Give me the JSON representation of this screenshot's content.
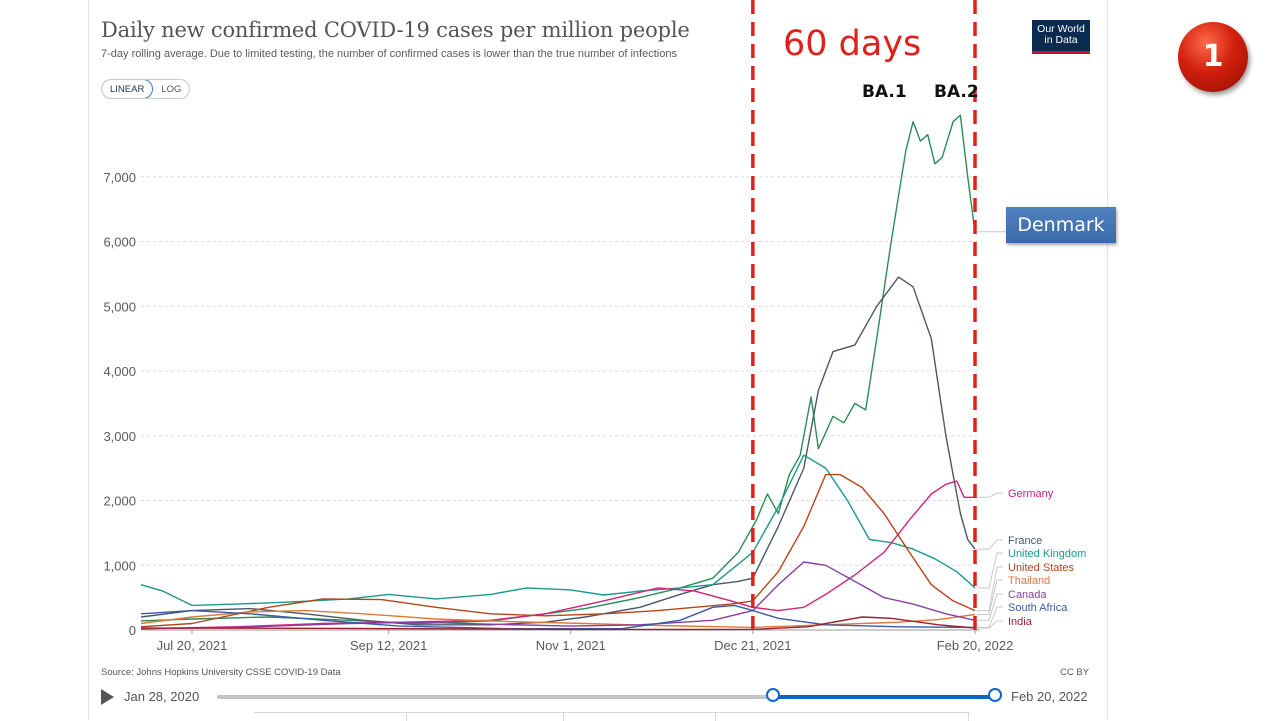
{
  "header": {
    "title": "Daily new confirmed COVID-19 cases per million people",
    "subtitle": "7-day rolling average. Due to limited testing, the number of confirmed cases is lower than the true number of infections",
    "scale_linear": "LINEAR",
    "scale_log": "LOG",
    "active_scale": "LINEAR",
    "logo_line1": "Our World",
    "logo_line2": "in Data"
  },
  "annotations": {
    "days": "60 days",
    "ba1": "BA.1",
    "ba2": "BA.2",
    "denmark": "Denmark",
    "badge": "1",
    "marker_color": "#e0201a"
  },
  "footer": {
    "source": "Source: Johns Hopkins University CSSE COVID-19 Data",
    "license": "CC BY"
  },
  "timeline": {
    "start": "Jan 28, 2020",
    "end": "Feb 20, 2022",
    "play_icon": "play-icon"
  },
  "chart_data": {
    "type": "line",
    "x_ticks": [
      "Jul 20, 2021",
      "Sep 12, 2021",
      "Nov 1, 2021",
      "Dec 21, 2021",
      "Feb 20, 2022"
    ],
    "x_range": [
      "2021-07-06",
      "2022-02-20"
    ],
    "y_ticks": [
      0,
      1000,
      2000,
      3000,
      4000,
      5000,
      6000,
      7000
    ],
    "y_tick_labels": [
      "0",
      "1,000",
      "2,000",
      "3,000",
      "4,000",
      "5,000",
      "6,000",
      "7,000"
    ],
    "ylim": [
      0,
      8000
    ],
    "grid": "horizontal dashed",
    "scale": "linear",
    "vertical_markers": [
      "2021-12-21",
      "2022-02-20"
    ],
    "series": [
      {
        "name": "Denmark",
        "color": "#2e8b57",
        "labeled": false,
        "points": [
          [
            "2021-07-06",
            140
          ],
          [
            "2021-07-20",
            170
          ],
          [
            "2021-08-10",
            200
          ],
          [
            "2021-09-01",
            150
          ],
          [
            "2021-09-20",
            100
          ],
          [
            "2021-10-10",
            140
          ],
          [
            "2021-10-25",
            250
          ],
          [
            "2021-11-05",
            330
          ],
          [
            "2021-11-20",
            500
          ],
          [
            "2021-12-01",
            650
          ],
          [
            "2021-12-10",
            800
          ],
          [
            "2021-12-17",
            1200
          ],
          [
            "2021-12-22",
            1700
          ],
          [
            "2021-12-25",
            2100
          ],
          [
            "2021-12-28",
            1800
          ],
          [
            "2021-12-31",
            2400
          ],
          [
            "2022-01-03",
            2700
          ],
          [
            "2022-01-06",
            3600
          ],
          [
            "2022-01-08",
            2800
          ],
          [
            "2022-01-12",
            3300
          ],
          [
            "2022-01-15",
            3200
          ],
          [
            "2022-01-18",
            3500
          ],
          [
            "2022-01-21",
            3400
          ],
          [
            "2022-01-24",
            4500
          ],
          [
            "2022-01-28",
            6000
          ],
          [
            "2022-02-01",
            7400
          ],
          [
            "2022-02-03",
            7850
          ],
          [
            "2022-02-05",
            7550
          ],
          [
            "2022-02-07",
            7650
          ],
          [
            "2022-02-09",
            7200
          ],
          [
            "2022-02-11",
            7300
          ],
          [
            "2022-02-14",
            7850
          ],
          [
            "2022-02-16",
            7950
          ],
          [
            "2022-02-18",
            7000
          ],
          [
            "2022-02-20",
            6150
          ]
        ]
      },
      {
        "name": "France",
        "color": "#4a5868",
        "labeled": true,
        "points": [
          [
            "2021-07-06",
            200
          ],
          [
            "2021-07-20",
            300
          ],
          [
            "2021-08-05",
            330
          ],
          [
            "2021-08-20",
            250
          ],
          [
            "2021-09-05",
            150
          ],
          [
            "2021-09-20",
            80
          ],
          [
            "2021-10-10",
            80
          ],
          [
            "2021-10-25",
            120
          ],
          [
            "2021-11-05",
            200
          ],
          [
            "2021-11-20",
            350
          ],
          [
            "2021-12-01",
            550
          ],
          [
            "2021-12-10",
            700
          ],
          [
            "2021-12-17",
            750
          ],
          [
            "2021-12-21",
            800
          ],
          [
            "2021-12-28",
            1600
          ],
          [
            "2022-01-04",
            2500
          ],
          [
            "2022-01-08",
            3700
          ],
          [
            "2022-01-12",
            4300
          ],
          [
            "2022-01-18",
            4400
          ],
          [
            "2022-01-24",
            5000
          ],
          [
            "2022-01-30",
            5450
          ],
          [
            "2022-02-03",
            5300
          ],
          [
            "2022-02-08",
            4500
          ],
          [
            "2022-02-12",
            3000
          ],
          [
            "2022-02-14",
            2400
          ],
          [
            "2022-02-16",
            1800
          ],
          [
            "2022-02-18",
            1400
          ],
          [
            "2022-02-20",
            1250
          ]
        ]
      },
      {
        "name": "United Kingdom",
        "color": "#18998c",
        "labeled": true,
        "points": [
          [
            "2021-07-06",
            700
          ],
          [
            "2021-07-12",
            600
          ],
          [
            "2021-07-20",
            380
          ],
          [
            "2021-08-01",
            400
          ],
          [
            "2021-08-15",
            430
          ],
          [
            "2021-09-01",
            480
          ],
          [
            "2021-09-12",
            550
          ],
          [
            "2021-09-25",
            480
          ],
          [
            "2021-10-10",
            550
          ],
          [
            "2021-10-20",
            650
          ],
          [
            "2021-11-01",
            620
          ],
          [
            "2021-11-10",
            540
          ],
          [
            "2021-11-20",
            600
          ],
          [
            "2021-12-01",
            650
          ],
          [
            "2021-12-10",
            700
          ],
          [
            "2021-12-21",
            1200
          ],
          [
            "2021-12-28",
            1900
          ],
          [
            "2022-01-04",
            2700
          ],
          [
            "2022-01-10",
            2500
          ],
          [
            "2022-01-16",
            2000
          ],
          [
            "2022-01-22",
            1400
          ],
          [
            "2022-01-28",
            1350
          ],
          [
            "2022-02-03",
            1250
          ],
          [
            "2022-02-09",
            1100
          ],
          [
            "2022-02-15",
            900
          ],
          [
            "2022-02-20",
            650
          ]
        ]
      },
      {
        "name": "Germany",
        "color": "#d4217a",
        "labeled": true,
        "points": [
          [
            "2021-07-06",
            20
          ],
          [
            "2021-08-01",
            50
          ],
          [
            "2021-08-25",
            100
          ],
          [
            "2021-09-15",
            120
          ],
          [
            "2021-10-10",
            150
          ],
          [
            "2021-10-25",
            250
          ],
          [
            "2021-11-10",
            450
          ],
          [
            "2021-11-25",
            650
          ],
          [
            "2021-12-05",
            600
          ],
          [
            "2021-12-15",
            450
          ],
          [
            "2021-12-21",
            350
          ],
          [
            "2021-12-28",
            300
          ],
          [
            "2022-01-04",
            350
          ],
          [
            "2022-01-10",
            550
          ],
          [
            "2022-01-18",
            850
          ],
          [
            "2022-01-26",
            1200
          ],
          [
            "2022-02-02",
            1700
          ],
          [
            "2022-02-08",
            2100
          ],
          [
            "2022-02-12",
            2250
          ],
          [
            "2022-02-15",
            2300
          ],
          [
            "2022-02-17",
            2050
          ],
          [
            "2022-02-20",
            2050
          ]
        ]
      },
      {
        "name": "United States",
        "color": "#b5451b",
        "labeled": true,
        "points": [
          [
            "2021-07-06",
            50
          ],
          [
            "2021-07-20",
            100
          ],
          [
            "2021-08-10",
            350
          ],
          [
            "2021-08-25",
            480
          ],
          [
            "2021-09-10",
            470
          ],
          [
            "2021-09-25",
            350
          ],
          [
            "2021-10-10",
            250
          ],
          [
            "2021-10-25",
            220
          ],
          [
            "2021-11-10",
            250
          ],
          [
            "2021-11-25",
            300
          ],
          [
            "2021-12-05",
            350
          ],
          [
            "2021-12-15",
            400
          ],
          [
            "2021-12-21",
            450
          ],
          [
            "2021-12-28",
            900
          ],
          [
            "2022-01-04",
            1600
          ],
          [
            "2022-01-10",
            2400
          ],
          [
            "2022-01-14",
            2400
          ],
          [
            "2022-01-20",
            2200
          ],
          [
            "2022-01-26",
            1800
          ],
          [
            "2022-02-02",
            1200
          ],
          [
            "2022-02-08",
            700
          ],
          [
            "2022-02-14",
            450
          ],
          [
            "2022-02-20",
            300
          ]
        ]
      },
      {
        "name": "Thailand",
        "color": "#e0793c",
        "labeled": true,
        "points": [
          [
            "2021-07-06",
            100
          ],
          [
            "2021-07-20",
            200
          ],
          [
            "2021-08-05",
            280
          ],
          [
            "2021-08-20",
            300
          ],
          [
            "2021-09-05",
            250
          ],
          [
            "2021-09-25",
            170
          ],
          [
            "2021-10-15",
            130
          ],
          [
            "2021-11-05",
            100
          ],
          [
            "2021-11-25",
            70
          ],
          [
            "2021-12-21",
            40
          ],
          [
            "2022-01-10",
            80
          ],
          [
            "2022-01-30",
            120
          ],
          [
            "2022-02-10",
            160
          ],
          [
            "2022-02-20",
            240
          ]
        ]
      },
      {
        "name": "Canada",
        "color": "#8b3fa0",
        "labeled": true,
        "points": [
          [
            "2021-07-06",
            20
          ],
          [
            "2021-08-01",
            40
          ],
          [
            "2021-09-01",
            100
          ],
          [
            "2021-09-20",
            120
          ],
          [
            "2021-10-10",
            90
          ],
          [
            "2021-11-01",
            60
          ],
          [
            "2021-11-20",
            80
          ],
          [
            "2021-12-10",
            150
          ],
          [
            "2021-12-21",
            300
          ],
          [
            "2021-12-28",
            700
          ],
          [
            "2022-01-04",
            1050
          ],
          [
            "2022-01-10",
            1000
          ],
          [
            "2022-01-18",
            750
          ],
          [
            "2022-01-26",
            500
          ],
          [
            "2022-02-03",
            400
          ],
          [
            "2022-02-12",
            250
          ],
          [
            "2022-02-20",
            150
          ]
        ]
      },
      {
        "name": "South Africa",
        "color": "#3b5aa8",
        "labeled": true,
        "points": [
          [
            "2021-07-06",
            250
          ],
          [
            "2021-07-20",
            300
          ],
          [
            "2021-08-05",
            250
          ],
          [
            "2021-08-25",
            150
          ],
          [
            "2021-09-15",
            60
          ],
          [
            "2021-10-15",
            20
          ],
          [
            "2021-11-15",
            20
          ],
          [
            "2021-12-01",
            150
          ],
          [
            "2021-12-10",
            350
          ],
          [
            "2021-12-16",
            380
          ],
          [
            "2021-12-21",
            300
          ],
          [
            "2021-12-28",
            180
          ],
          [
            "2022-01-10",
            80
          ],
          [
            "2022-01-30",
            50
          ],
          [
            "2022-02-20",
            40
          ]
        ]
      },
      {
        "name": "India",
        "color": "#9e1f2e",
        "labeled": true,
        "points": [
          [
            "2021-07-06",
            30
          ],
          [
            "2021-08-01",
            28
          ],
          [
            "2021-09-01",
            25
          ],
          [
            "2021-10-01",
            18
          ],
          [
            "2021-11-01",
            10
          ],
          [
            "2021-12-01",
            8
          ],
          [
            "2021-12-21",
            10
          ],
          [
            "2022-01-05",
            50
          ],
          [
            "2022-01-20",
            200
          ],
          [
            "2022-01-28",
            180
          ],
          [
            "2022-02-10",
            80
          ],
          [
            "2022-02-20",
            30
          ]
        ]
      }
    ]
  }
}
